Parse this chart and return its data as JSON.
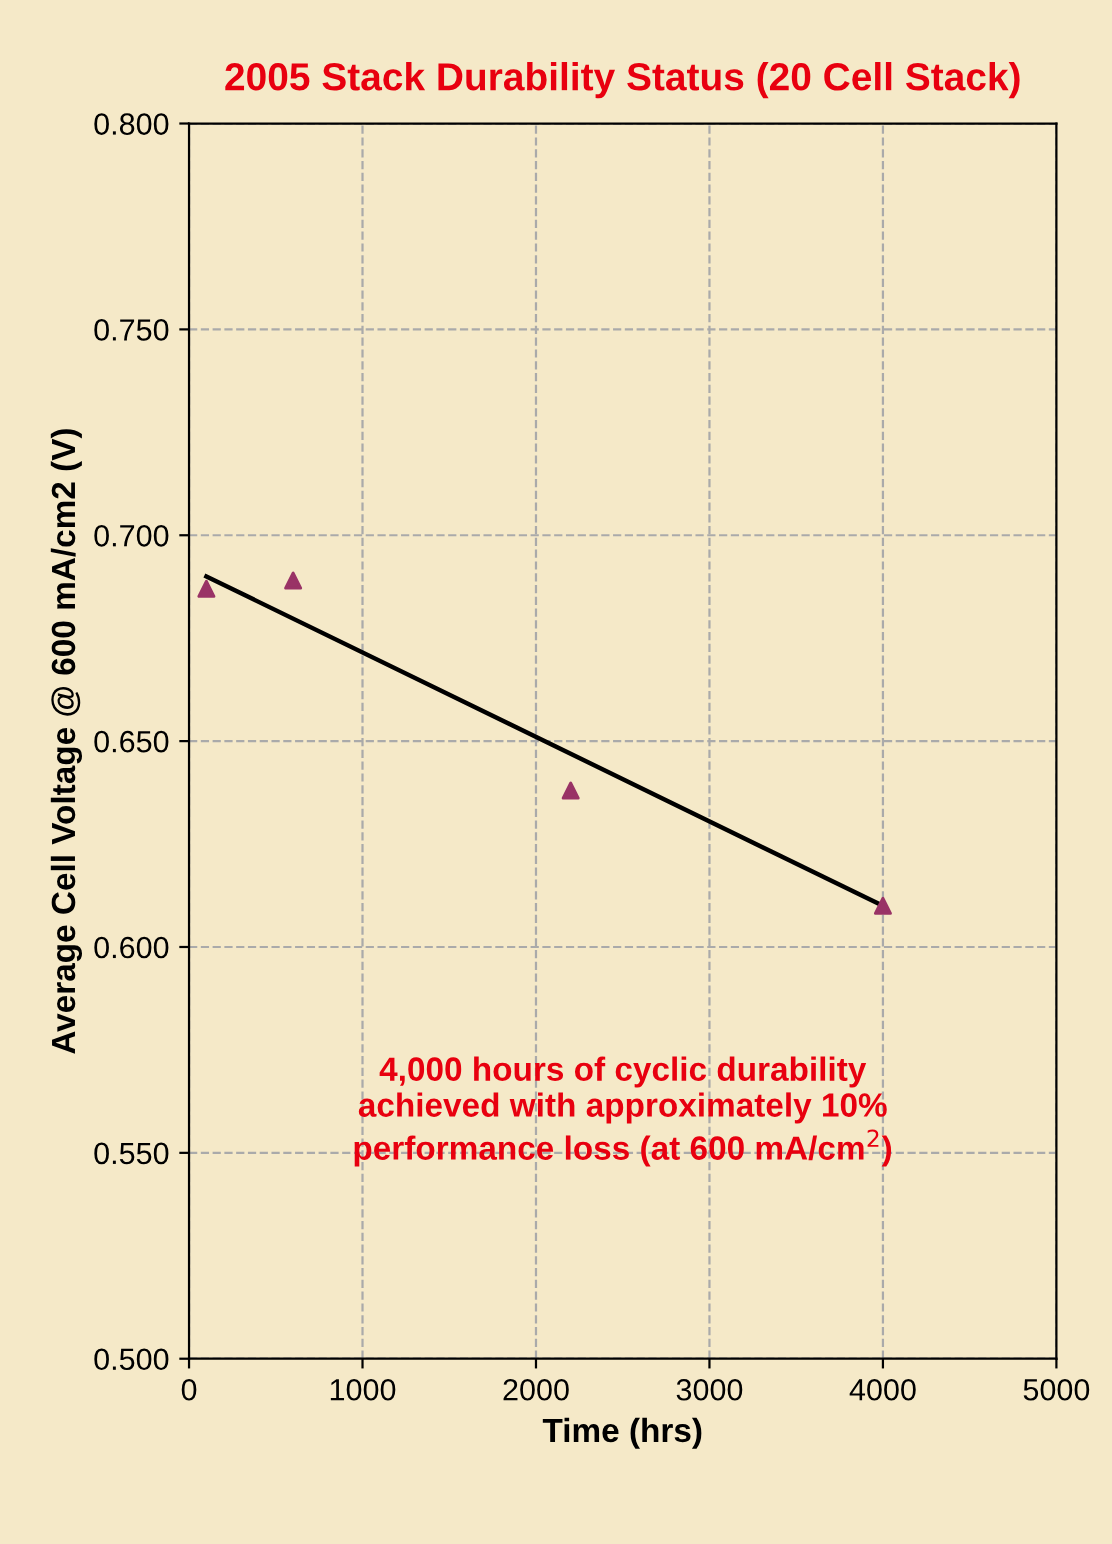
{
  "chart_data": {
    "type": "scatter",
    "title": "2005 Stack Durability Status (20 Cell Stack)",
    "xlabel": "Time (hrs)",
    "ylabel": "Average Cell Voltage @ 600 mA/cm2 (V)",
    "annotations": [
      "4,000 hours of cyclic durability\nachieved with approximately 10%\nperformance loss (at 600 mA/cm$^{2}$)"
    ],
    "series": [
      {
        "type": "scatter",
        "color": "#993366",
        "marker": "triangle",
        "x": [
          100,
          600,
          2200,
          4000
        ],
        "values": [
          0.687,
          0.689,
          0.638,
          0.61
        ]
      },
      {
        "type": "line",
        "color": "#000000",
        "marker": "none",
        "x": [
          100,
          4000
        ],
        "values": [
          0.69,
          0.61
        ]
      }
    ],
    "xlim": [
      0,
      5000
    ],
    "xticks": [
      0,
      1000,
      2000,
      3000,
      4000,
      5000
    ],
    "ylim": [
      0.5,
      0.8
    ],
    "yticks": [
      {
        "value": 0.8,
        "label": "0.800"
      },
      {
        "value": 0.75,
        "label": "0.750"
      },
      {
        "value": 0.7,
        "label": "0.700"
      },
      {
        "value": 0.65,
        "label": "0.650"
      },
      {
        "value": 0.6,
        "label": "0.600"
      },
      {
        "value": 0.55,
        "label": "0.550"
      },
      {
        "value": 0.5,
        "label": "0.500"
      }
    ],
    "grid": true
  }
}
